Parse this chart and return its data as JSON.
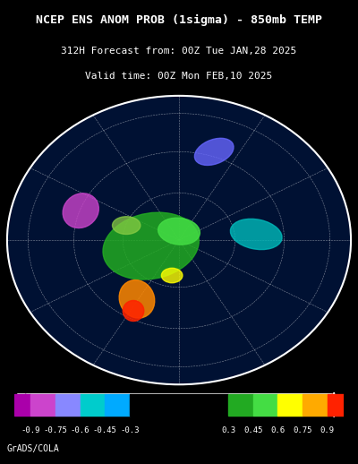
{
  "title_line1": "NCEP ENS ANOM PROB (1sigma) - 850mb TEMP",
  "title_line2": "312H Forecast from: 00Z Tue JAN,28 2025",
  "title_line3": "Valid time: 00Z Mon FEB,10 2025",
  "bg_color": "#000000",
  "title_color": "#ffffff",
  "colorbar_values": [
    -0.9,
    -0.75,
    -0.6,
    -0.45,
    -0.3,
    0.3,
    0.45,
    0.6,
    0.75,
    0.9
  ],
  "colorbar_labels": [
    "-0.9",
    "-0.75",
    "-0.6",
    "-0.45",
    "-0.3",
    "0.3",
    "0.45",
    "0.6",
    "0.75",
    "0.9"
  ],
  "colorbar_colors": [
    "#aa00aa",
    "#cc00cc",
    "#8888ff",
    "#00cccc",
    "#000000",
    "#00aa00",
    "#00dd00",
    "#ffff00",
    "#ffaa00",
    "#ff0000"
  ],
  "colorbar_segment_colors": [
    "#aa00aa",
    "#cc44cc",
    "#8888ff",
    "#00cccc",
    "#000000",
    "#00aa00",
    "#22cc22",
    "#ffff00",
    "#ffaa00",
    "#ff2200"
  ],
  "footer_text": "GrADS/COLA",
  "footer_color": "#ffffff",
  "map_image_placeholder": true
}
